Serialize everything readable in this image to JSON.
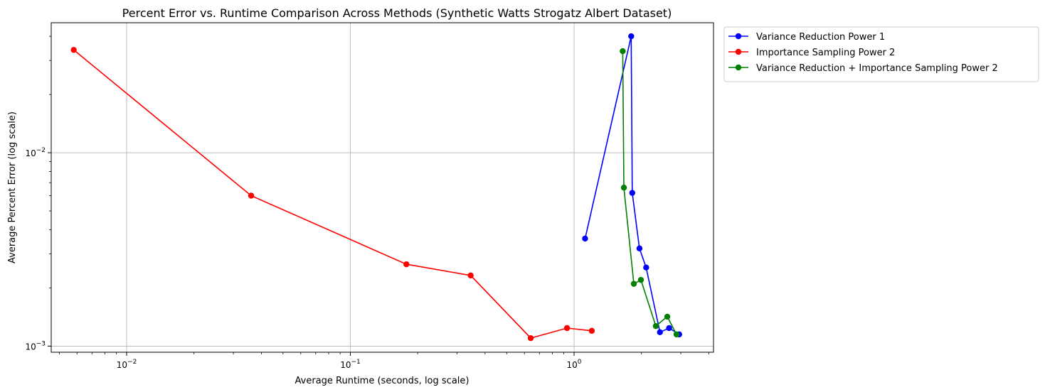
{
  "chart_data": {
    "type": "line",
    "title": "Percent Error vs. Runtime Comparison Across Methods (Synthetic Watts Strogatz Albert Dataset)",
    "xlabel": "Average Runtime (seconds, log scale)",
    "ylabel": "Average Percent Error (log scale)",
    "xscale": "log",
    "yscale": "log",
    "xlim": [
      0.0046,
      4.2
    ],
    "ylim": [
      0.00093,
      0.047
    ],
    "grid": true,
    "legend_placement": "outside-top-right",
    "x_ticks": [
      {
        "value": 0.01,
        "base": "10",
        "exp": "−2"
      },
      {
        "value": 0.1,
        "base": "10",
        "exp": "−1"
      },
      {
        "value": 1,
        "base": "10",
        "exp": "0"
      }
    ],
    "y_ticks": [
      {
        "value": 0.001,
        "base": "10",
        "exp": "−3"
      },
      {
        "value": 0.01,
        "base": "10",
        "exp": "−2"
      }
    ],
    "series": [
      {
        "name": "Variance Reduction Power 1",
        "color": "#0000ff",
        "x": [
          1.12,
          1.8,
          1.82,
          1.96,
          2.1,
          2.42,
          2.66,
          2.95
        ],
        "y": [
          0.0036,
          0.04,
          0.0062,
          0.0032,
          0.00255,
          0.00118,
          0.00124,
          0.00115
        ]
      },
      {
        "name": "Importance Sampling Power 2",
        "color": "#ff0000",
        "x": [
          0.0058,
          0.036,
          0.178,
          0.345,
          0.64,
          0.93,
          1.2
        ],
        "y": [
          0.034,
          0.006,
          0.00265,
          0.00232,
          0.0011,
          0.00124,
          0.0012
        ]
      },
      {
        "name": "Variance Reduction + Importance Sampling Power 2",
        "color": "#008000",
        "x": [
          1.65,
          1.67,
          1.85,
          1.99,
          2.32,
          2.61,
          2.87
        ],
        "y": [
          0.0335,
          0.0066,
          0.0021,
          0.0022,
          0.00127,
          0.00142,
          0.00115
        ]
      }
    ]
  }
}
